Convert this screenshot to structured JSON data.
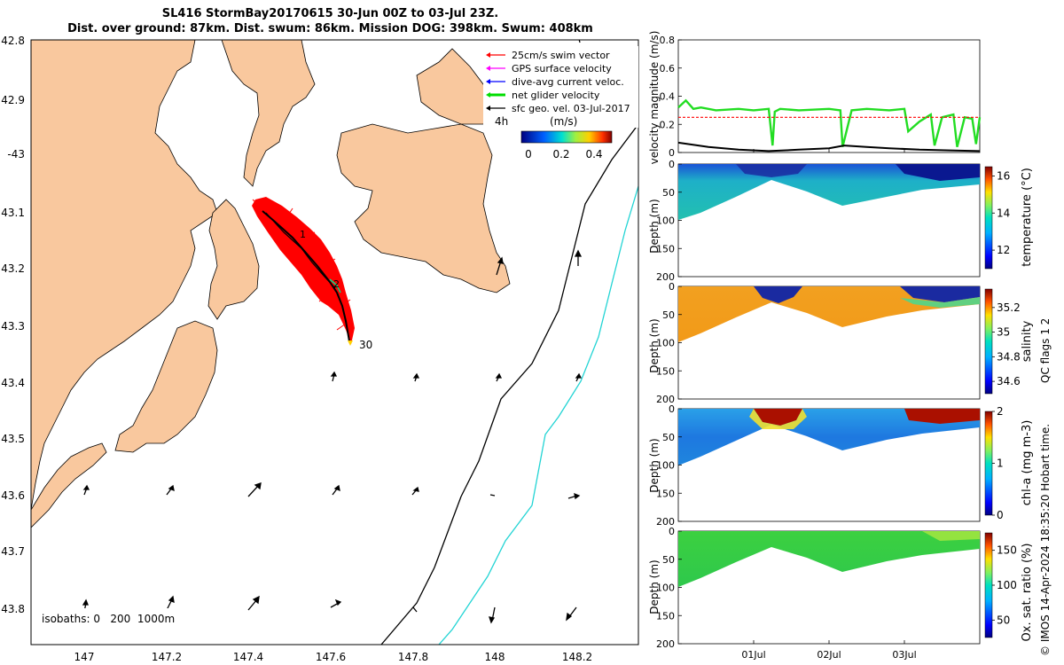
{
  "title": {
    "line1": "SL416 StormBay20170615 30-Jun 00Z to 03-Jul 23Z.",
    "line2": "Dist. over ground: 87km. Dist. swum: 86km. Mission DOG: 398km. Swum: 408km"
  },
  "map": {
    "lat_ticks": [
      "42.8",
      "42.9",
      "-43",
      "43.1",
      "43.2",
      "43.3",
      "43.4",
      "43.5",
      "43.6",
      "43.7",
      "43.8"
    ],
    "lon_ticks": [
      "147",
      "147.2",
      "147.4",
      "147.6",
      "147.8",
      "148",
      "148.2"
    ],
    "legend": [
      {
        "label": "25cm/s swim vector",
        "color": "#ff0000"
      },
      {
        "label": "GPS surface velocity",
        "color": "#ff00ff"
      },
      {
        "label": "dive-avg current veloc.",
        "color": "#0000ff"
      },
      {
        "label": "net glider velocity",
        "color": "#00dd00"
      },
      {
        "label": "sfc geo. vel. 03-Jul-2017",
        "color": "#000000"
      }
    ],
    "arrow_scale_label": "4h",
    "colorbar": {
      "label": "(m/s)",
      "ticks": [
        "0",
        "0.2",
        "0.4"
      ]
    },
    "track_labels": [
      "1",
      "2",
      "30"
    ],
    "isobath_label": "isobaths: 0   200  1000m",
    "colors": {
      "land": "#f9c89e",
      "isobath_200": "#000000",
      "isobath_1000": "#22d4d4",
      "swim": "#ff0000"
    }
  },
  "chart_data": [
    {
      "type": "line",
      "ylabel": "velocity magnitude (m/s)",
      "ylim": [
        0,
        0.8
      ],
      "y_ticks": [
        "0",
        "0.2",
        "0.4",
        "0.6",
        "0.8"
      ],
      "x_ticks": [
        "01Jul",
        "02Jul",
        "03Jul"
      ],
      "series": [
        {
          "color": "#22dd22",
          "x": [
            0,
            0.1,
            0.2,
            0.3,
            0.5,
            0.8,
            1.0,
            1.2,
            1.25,
            1.28,
            1.35,
            1.6,
            2.0,
            2.15,
            2.18,
            2.3,
            2.5,
            2.8,
            3.0,
            3.05,
            3.2,
            3.35,
            3.4,
            3.5,
            3.65,
            3.7,
            3.8,
            3.9,
            3.95,
            4.0
          ],
          "y": [
            0.32,
            0.37,
            0.31,
            0.32,
            0.3,
            0.31,
            0.3,
            0.31,
            0.05,
            0.29,
            0.31,
            0.3,
            0.31,
            0.3,
            0.04,
            0.3,
            0.31,
            0.3,
            0.31,
            0.15,
            0.22,
            0.27,
            0.05,
            0.25,
            0.27,
            0.04,
            0.25,
            0.24,
            0.06,
            0.25
          ]
        },
        {
          "color": "#ff0000",
          "x": [
            0,
            4
          ],
          "y": [
            0.25,
            0.25
          ]
        },
        {
          "color": "#000000",
          "x": [
            0,
            0.4,
            0.8,
            1.2,
            1.6,
            2.0,
            2.2,
            2.5,
            2.8,
            3.2,
            3.6,
            4.0
          ],
          "y": [
            0.07,
            0.04,
            0.02,
            0.01,
            0.02,
            0.03,
            0.05,
            0.04,
            0.03,
            0.02,
            0.015,
            0.01
          ]
        }
      ]
    },
    {
      "type": "heatmap",
      "ylabel": "Depth (m)",
      "colorbar_label": "temperature (°C)",
      "colorbar_ticks": [
        "12",
        "14",
        "16"
      ],
      "clim": [
        11,
        16.5
      ],
      "ylim": [
        200,
        0
      ],
      "y_ticks": [
        "0",
        "50",
        "100",
        "150",
        "200"
      ]
    },
    {
      "type": "heatmap",
      "ylabel": "Depth (m)",
      "colorbar_label": "salinity",
      "colorbar_ticks": [
        "34.6",
        "34.8",
        "35",
        "35.2"
      ],
      "clim": [
        34.5,
        35.35
      ],
      "ylim": [
        200,
        0
      ],
      "y_ticks": [
        "0",
        "50",
        "100",
        "150",
        "200"
      ]
    },
    {
      "type": "heatmap",
      "ylabel": "Depth (m)",
      "colorbar_label": "chl-a (mg m-3)",
      "colorbar_ticks": [
        "0",
        "1",
        "2"
      ],
      "clim": [
        0,
        2
      ],
      "ylim": [
        200,
        0
      ],
      "y_ticks": [
        "0",
        "50",
        "100",
        "150",
        "200"
      ]
    },
    {
      "type": "heatmap",
      "ylabel": "Depth (m)",
      "colorbar_label": "Ox. sat. ratio (%)",
      "colorbar_ticks": [
        "50",
        "100",
        "150"
      ],
      "clim": [
        25,
        175
      ],
      "ylim": [
        200,
        0
      ],
      "y_ticks": [
        "0",
        "50",
        "100",
        "150",
        "200"
      ],
      "x_ticks": [
        "01Jul",
        "02Jul",
        "03Jul"
      ]
    }
  ],
  "side_note": "QC flags 1  2",
  "footer": "© IMOS 14-Apr-2024 18:35:20 Hobart time."
}
